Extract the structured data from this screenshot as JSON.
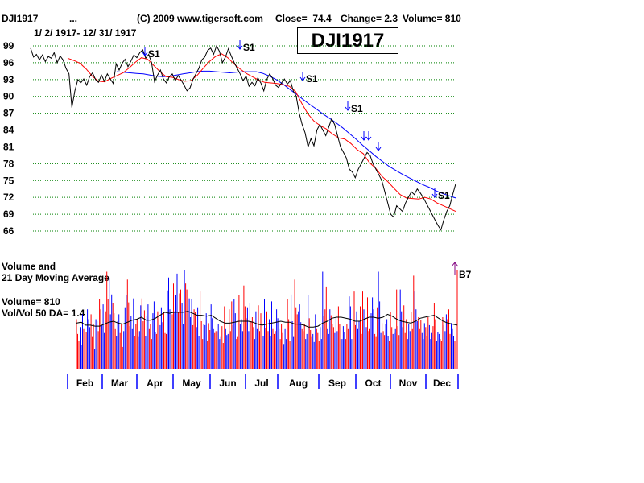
{
  "header": {
    "symbol": "DJI1917",
    "dots": "...",
    "copyright": "(C) 2009 www.tigersoft.com",
    "close": "Close=  74.4",
    "change": "Change= 2.3",
    "volume": "Volume= 810",
    "date_range": "1/ 2/ 1917- 12/ 31/ 1917",
    "big_label": "DJI1917"
  },
  "volume_panel": {
    "title_line1": "Volume and",
    "title_line2": "21 Day Moving Average",
    "volume_text": "Volume= 810",
    "ratio_text": "Vol/Vol 50 DA= 1.4"
  },
  "colors": {
    "price": "#000000",
    "ma_short": "#ff0000",
    "ma_long": "#0000ff",
    "up_volume": "#0000ff",
    "down_volume": "#ff0000",
    "grid": "#008000",
    "buy_arrow": "#800080"
  },
  "chart_data": {
    "type": "line",
    "y_ticks": [
      99,
      96,
      93,
      90,
      87,
      84,
      81,
      78,
      75,
      72,
      69,
      66
    ],
    "ylim": [
      66,
      99
    ],
    "grid": "dotted horizontal",
    "x_labels": [
      "Feb",
      "Mar",
      "Apr",
      "May",
      "Jun",
      "Jul",
      "Aug",
      "Sep",
      "Oct",
      "Nov",
      "Dec"
    ],
    "series": [
      {
        "role": "close",
        "values": [
          98.6,
          97.0,
          97.5,
          96.5,
          97.4,
          96.2,
          97.1,
          96.8,
          97.8,
          96.0,
          97.2,
          96.5,
          95.0,
          94.0,
          88.0,
          91.0,
          93.0,
          92.4,
          93.1,
          92.0,
          93.5,
          94.2,
          93.0,
          92.5,
          93.8,
          92.7,
          94.0,
          93.1,
          92.3,
          95.8,
          94.7,
          95.9,
          96.6,
          95.3,
          96.3,
          97.4,
          96.9,
          97.8,
          98.3,
          96.8,
          97.5,
          96.0,
          92.6,
          93.8,
          94.7,
          93.1,
          92.4,
          93.5,
          94.0,
          92.8,
          93.7,
          92.9,
          92.0,
          91.0,
          91.5,
          93.0,
          94.0,
          95.0,
          96.5,
          97.0,
          98.2,
          98.6,
          97.5,
          99.0,
          98.0,
          96.0,
          97.0,
          98.5,
          97.2,
          96.0,
          95.0,
          94.0,
          92.8,
          93.6,
          91.8,
          92.5,
          91.9,
          93.3,
          92.4,
          91.0,
          93.0,
          94.0,
          93.2,
          92.0,
          91.6,
          92.4,
          93.1,
          92.2,
          92.8,
          91.0,
          90.0,
          87.0,
          85.0,
          83.5,
          81.0,
          82.5,
          81.2,
          84.0,
          85.0,
          84.0,
          83.0,
          84.5,
          86.0,
          85.0,
          83.0,
          81.0,
          80.0,
          79.0,
          77.0,
          76.5,
          75.5,
          77.0,
          78.0,
          79.0,
          80.0,
          79.5,
          78.0,
          77.0,
          76.0,
          75.0,
          73.0,
          71.0,
          69.0,
          68.5,
          70.5,
          70.0,
          69.5,
          71.0,
          72.0,
          73.0,
          72.5,
          73.5,
          72.8,
          72.0,
          71.0,
          70.0,
          69.0,
          68.0,
          67.0,
          66.2,
          68.0,
          69.5,
          70.5,
          72.5,
          74.4
        ]
      },
      {
        "role": "short moving average",
        "values": [
          96.8,
          96.4,
          95.9,
          94.9,
          93.6,
          92.7,
          92.6,
          93.2,
          93.7,
          94.2,
          95.1,
          96.1,
          96.9,
          96.6,
          95.5,
          94.4,
          93.5,
          93.4,
          93.0,
          92.7,
          92.8,
          93.7,
          95.0,
          96.2,
          97.1,
          97.6,
          96.9,
          95.8,
          94.9,
          94.1,
          93.5,
          92.9,
          92.5,
          92.4,
          92.3,
          92.1,
          91.8,
          90.9,
          88.8,
          86.9,
          85.6,
          84.8,
          84.2,
          83.3,
          82.6,
          82.4,
          81.6,
          80.5,
          79.8,
          78.2,
          77.2,
          75.8,
          74.8,
          73.6,
          72.5,
          71.9,
          71.8,
          71.7,
          72.0,
          71.7,
          71.0,
          70.5,
          70.0,
          69.5
        ]
      },
      {
        "role": "long moving average",
        "values": [
          94.4,
          94.3,
          94.2,
          94.1,
          94.0,
          93.8,
          93.6,
          93.5,
          93.6,
          93.8,
          94.0,
          94.2,
          94.4,
          94.5,
          94.5,
          94.4,
          94.3,
          94.2,
          94.3,
          94.4,
          94.4,
          94.4,
          94.1,
          93.6,
          93.0,
          92.2,
          91.3,
          90.4,
          89.5,
          88.6,
          87.8,
          86.9,
          86.1,
          85.3,
          84.4,
          83.4,
          82.4,
          81.3,
          80.3,
          79.3,
          78.4,
          77.5,
          76.8,
          76.1,
          75.5,
          74.9,
          74.3,
          73.8,
          73.2,
          72.7,
          72.3,
          71.9
        ]
      }
    ],
    "annotations": [
      {
        "label": "S1",
        "arrow": "down",
        "near": "Apr"
      },
      {
        "label": "S1",
        "arrow": "down",
        "near": "Jun"
      },
      {
        "label": "S1",
        "arrow": "down",
        "near": "Aug"
      },
      {
        "label": "S1",
        "arrow": "down",
        "near": "Sep"
      },
      {
        "label": "",
        "arrow": "down",
        "near": "Oct"
      },
      {
        "label": "",
        "arrow": "down",
        "near": "Oct"
      },
      {
        "label": "",
        "arrow": "down",
        "near": "Oct"
      },
      {
        "label": "S1",
        "arrow": "down",
        "near": "Dec"
      },
      {
        "label": "B7",
        "arrow": "up",
        "near": "Dec"
      }
    ],
    "volume_bars": [
      50,
      35,
      28,
      42,
      24,
      55,
      40,
      68,
      37,
      60,
      50,
      42,
      55,
      32,
      45,
      20,
      50,
      48,
      38,
      70,
      60,
      44,
      65,
      36,
      58,
      98,
      70,
      92,
      55,
      75,
      66,
      56,
      40,
      33,
      48,
      55,
      36,
      45,
      22,
      38,
      62,
      74,
      90,
      67,
      43,
      53,
      40,
      71,
      33,
      45,
      50,
      32,
      38,
      64,
      71,
      48,
      59,
      33,
      53,
      65,
      40,
      45,
      30,
      56,
      68,
      37,
      35,
      58,
      50,
      44,
      62,
      47,
      57,
      36,
      35,
      79,
      92,
      60,
      71,
      55,
      86,
      58,
      74,
      96,
      57,
      76,
      80,
      66,
      45,
      100,
      86,
      80,
      58,
      71,
      52,
      70,
      44,
      60,
      57,
      42,
      62,
      33,
      78,
      48,
      30,
      45,
      44,
      56,
      28,
      46,
      39,
      65,
      51,
      40,
      36,
      38,
      38,
      45,
      30,
      32,
      43,
      26,
      63,
      40,
      34,
      35,
      60,
      38,
      68,
      44,
      70,
      56,
      30,
      32,
      74,
      45,
      50,
      38,
      84,
      63,
      51,
      62,
      38,
      66,
      48,
      52,
      42,
      30,
      58,
      40,
      64,
      38,
      56,
      45,
      33,
      70,
      41,
      58,
      38,
      50,
      33,
      68,
      40,
      35,
      38,
      60,
      51,
      40,
      30,
      45,
      36,
      25,
      40,
      30,
      70,
      50,
      28,
      75,
      48,
      32,
      90,
      62,
      55,
      58,
      65,
      47,
      40,
      38,
      45,
      30,
      35,
      74,
      51,
      39,
      32,
      35,
      27,
      55,
      40,
      36,
      28,
      42,
      30,
      98,
      53,
      60,
      83,
      40,
      35,
      60,
      54,
      45,
      42,
      36,
      52,
      38,
      63,
      45,
      30,
      30,
      43,
      37,
      30,
      45,
      40,
      73,
      63,
      30,
      45,
      78,
      44,
      58,
      40,
      48,
      63,
      35,
      78,
      60,
      48,
      42,
      72,
      38,
      40,
      56,
      72,
      60,
      35,
      32,
      62,
      98,
      68,
      36,
      46,
      38,
      34,
      45,
      50,
      33,
      28,
      57,
      42,
      35,
      36,
      40,
      80,
      43,
      34,
      80,
      58,
      42,
      64,
      36,
      50,
      30,
      45,
      38,
      57,
      40,
      94,
      78,
      60,
      48,
      52,
      40,
      49,
      36,
      30,
      46,
      42,
      33,
      52,
      44,
      30,
      36,
      43,
      66,
      50,
      28,
      37,
      35,
      30,
      28,
      52,
      44,
      38,
      55,
      50,
      60,
      35,
      46,
      40,
      33,
      28,
      62,
      100
    ],
    "volume_ma": [
      46,
      47,
      44,
      44,
      43,
      43,
      45,
      47,
      48,
      46,
      45,
      47,
      49,
      50,
      52,
      49,
      49,
      51,
      54,
      57,
      56,
      57,
      57,
      57,
      58,
      56,
      54,
      54,
      53,
      54,
      51,
      48,
      46,
      46,
      47,
      48,
      48,
      48,
      47,
      45,
      44,
      45,
      46,
      47,
      48,
      47,
      47,
      45,
      45,
      44,
      42,
      42,
      43,
      46,
      48,
      51,
      52,
      52,
      51,
      50,
      48,
      48,
      50,
      52,
      52,
      51,
      52,
      55,
      53,
      50,
      48,
      47,
      46,
      48,
      51,
      52,
      53,
      54,
      51,
      48,
      46,
      45,
      44
    ]
  }
}
